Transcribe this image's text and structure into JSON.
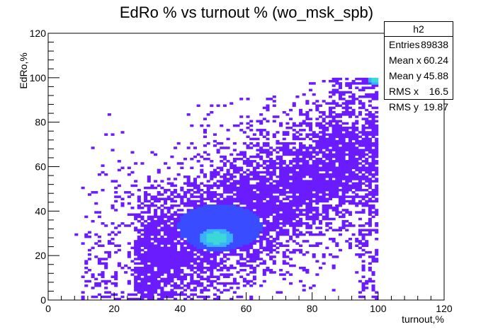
{
  "chart_data": {
    "type": "heatmap",
    "title": "EdRo % vs turnout % (wo_msk_spb)",
    "xlabel": "turnout,%",
    "ylabel": "EdRo,%",
    "xlim": [
      0,
      120
    ],
    "ylim": [
      0,
      120
    ],
    "x_ticks": [
      "0",
      "20",
      "40",
      "60",
      "80",
      "100",
      "120"
    ],
    "y_ticks": [
      "0",
      "20",
      "40",
      "60",
      "80",
      "100",
      "120"
    ],
    "grid": false,
    "legend": "none",
    "colors": {
      "low": "#6a1cff",
      "mid": "#3a4cff",
      "high": "#3ab0ff",
      "peak": "#3cd8d8",
      "frame": "#000000"
    },
    "density_clusters": [
      {
        "cx": 51,
        "cy": 28,
        "sx": 5,
        "sy": 4,
        "level": 1.0
      },
      {
        "cx": 52,
        "cy": 33,
        "sx": 11,
        "sy": 9,
        "level": 0.55
      },
      {
        "cx": 58,
        "cy": 40,
        "sx": 22,
        "sy": 14,
        "level": 0.2
      },
      {
        "cx": 99,
        "cy": 99,
        "sx": 1.5,
        "sy": 1.5,
        "level": 1.0
      }
    ],
    "stats": {
      "name": "h2",
      "rows": [
        {
          "label": "Entries",
          "value": "89838"
        },
        {
          "label": "Mean x",
          "value": "60.24"
        },
        {
          "label": "Mean y",
          "value": "45.88"
        },
        {
          "label": "RMS x",
          "value": "16.5"
        },
        {
          "label": "RMS y",
          "value": "19.87"
        }
      ]
    }
  }
}
